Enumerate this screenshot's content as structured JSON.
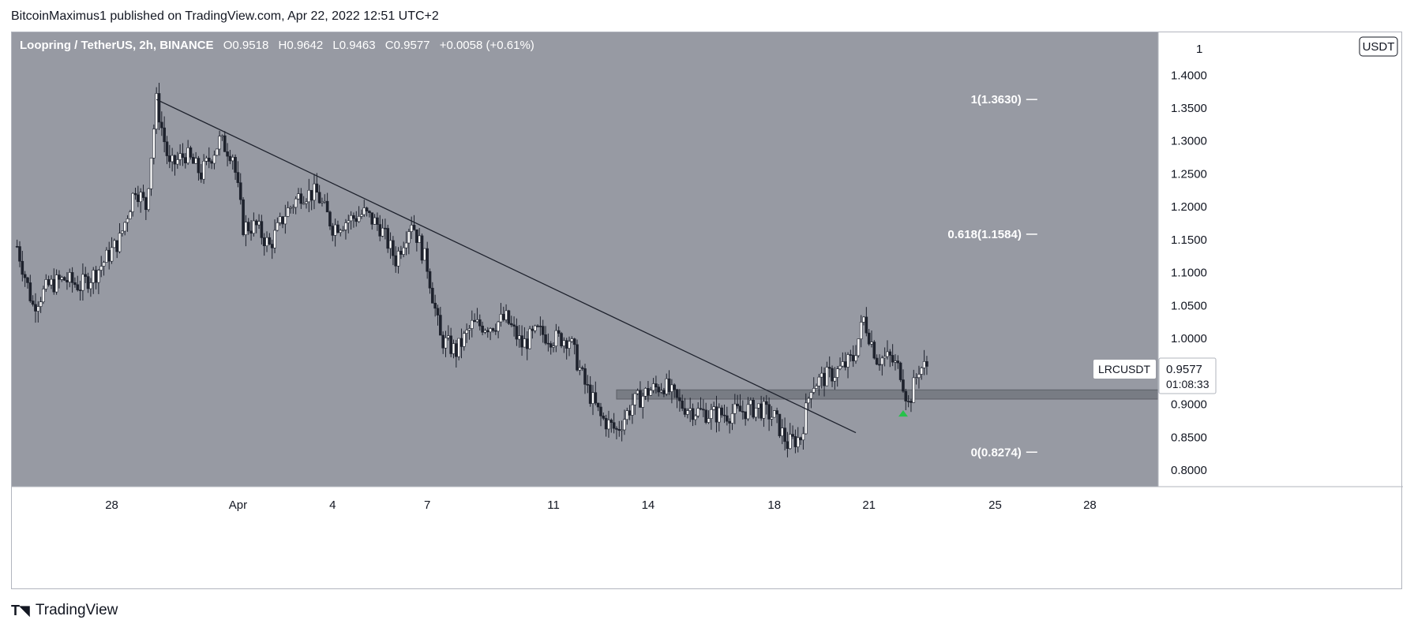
{
  "publisher_line": "BitcoinMaximus1 published on TradingView.com, Apr 22, 2022 12:51 UTC+2",
  "footer_brand": "TradingView",
  "header": {
    "symbol": "Loopring / TetherUS, 2h, BINANCE",
    "o_label": "O",
    "o_value": "0.9518",
    "h_label": "H",
    "h_value": "0.9642",
    "l_label": "L",
    "l_value": "0.9463",
    "c_label": "C",
    "c_value": "0.9577",
    "change": "+0.0058 (+0.61%)"
  },
  "currency_badge": "USDT",
  "price_tag": {
    "symbol": "LRCUSDT",
    "price": "0.9577",
    "countdown": "01:08:33"
  },
  "colors": {
    "pane_bg": "#979aa3",
    "axis_bg": "#ffffff",
    "candle": "#ffffff",
    "wick": "#1e222d",
    "trendline": "#1e222d",
    "zone": "#6e7179",
    "fib": "#ffffff",
    "arrow": "#26c24a"
  },
  "chart_data": {
    "type": "candlestick",
    "title": "",
    "y_axis": {
      "ticks": [
        "1.4000",
        "1.3500",
        "1.3000",
        "1.2500",
        "1.2000",
        "1.1500",
        "1.1000",
        "1.0500",
        "1.0000",
        "0.9500",
        "0.9000",
        "0.8500",
        "0.8000"
      ],
      "top_partial_tick": "1",
      "range": [
        0.775,
        1.465
      ]
    },
    "x_axis": {
      "ticks": [
        "28",
        "Apr",
        "4",
        "7",
        "11",
        "14",
        "18",
        "21",
        "25",
        "28"
      ]
    },
    "price_path": [
      [
        "2022-03-25T00:00",
        1.14
      ],
      [
        "2022-03-25T12:00",
        1.05
      ],
      [
        "2022-03-26T00:00",
        1.08
      ],
      [
        "2022-03-26T12:00",
        1.09
      ],
      [
        "2022-03-27T00:00",
        1.08
      ],
      [
        "2022-03-27T12:00",
        1.1
      ],
      [
        "2022-03-28T06:00",
        1.15
      ],
      [
        "2022-03-28T18:00",
        1.23
      ],
      [
        "2022-03-29T02:00",
        1.2
      ],
      [
        "2022-03-29T10:00",
        1.36
      ],
      [
        "2022-03-29T20:00",
        1.26
      ],
      [
        "2022-03-30T08:00",
        1.28
      ],
      [
        "2022-03-30T20:00",
        1.25
      ],
      [
        "2022-03-31T10:00",
        1.3
      ],
      [
        "2022-03-31T20:00",
        1.28
      ],
      [
        "2022-04-01T04:00",
        1.17
      ],
      [
        "2022-04-01T14:00",
        1.17
      ],
      [
        "2022-04-02T00:00",
        1.14
      ],
      [
        "2022-04-02T12:00",
        1.19
      ],
      [
        "2022-04-03T00:00",
        1.22
      ],
      [
        "2022-04-03T12:00",
        1.22
      ],
      [
        "2022-04-04T00:00",
        1.17
      ],
      [
        "2022-04-04T12:00",
        1.18
      ],
      [
        "2022-04-05T00:00",
        1.19
      ],
      [
        "2022-04-05T12:00",
        1.17
      ],
      [
        "2022-04-06T00:00",
        1.12
      ],
      [
        "2022-04-06T12:00",
        1.18
      ],
      [
        "2022-04-07T00:00",
        1.11
      ],
      [
        "2022-04-07T10:00",
        1.0
      ],
      [
        "2022-04-07T22:00",
        0.98
      ],
      [
        "2022-04-08T10:00",
        1.02
      ],
      [
        "2022-04-09T00:00",
        1.02
      ],
      [
        "2022-04-09T12:00",
        1.03
      ],
      [
        "2022-04-10T00:00",
        0.99
      ],
      [
        "2022-04-10T12:00",
        1.01
      ],
      [
        "2022-04-11T00:00",
        1.0
      ],
      [
        "2022-04-11T12:00",
        1.0
      ],
      [
        "2022-04-12T00:00",
        0.93
      ],
      [
        "2022-04-12T12:00",
        0.88
      ],
      [
        "2022-04-13T00:00",
        0.86
      ],
      [
        "2022-04-13T12:00",
        0.9
      ],
      [
        "2022-04-14T00:00",
        0.92
      ],
      [
        "2022-04-14T12:00",
        0.93
      ],
      [
        "2022-04-15T00:00",
        0.9
      ],
      [
        "2022-04-15T12:00",
        0.89
      ],
      [
        "2022-04-16T00:00",
        0.885
      ],
      [
        "2022-04-16T12:00",
        0.885
      ],
      [
        "2022-04-17T00:00",
        0.89
      ],
      [
        "2022-04-17T12:00",
        0.895
      ],
      [
        "2022-04-18T00:00",
        0.88
      ],
      [
        "2022-04-18T10:00",
        0.84
      ],
      [
        "2022-04-18T20:00",
        0.85
      ],
      [
        "2022-04-19T04:00",
        0.93
      ],
      [
        "2022-04-19T14:00",
        0.94
      ],
      [
        "2022-04-20T00:00",
        0.95
      ],
      [
        "2022-04-20T12:00",
        0.97
      ],
      [
        "2022-04-20T20:00",
        1.03
      ],
      [
        "2022-04-21T06:00",
        0.97
      ],
      [
        "2022-04-21T16:00",
        0.97
      ],
      [
        "2022-04-22T00:00",
        0.95
      ],
      [
        "2022-04-22T06:00",
        0.9
      ],
      [
        "2022-04-22T14:00",
        0.955
      ],
      [
        "2022-04-22T20:00",
        0.9577
      ]
    ],
    "last_price": 0.9577,
    "trendline": {
      "from": [
        "2022-03-29T10:00",
        1.363
      ],
      "to": [
        "2022-04-20T14:00",
        0.857
      ]
    },
    "support_zone": {
      "from": "2022-04-13T00:00",
      "y_range": [
        0.908,
        0.922
      ]
    },
    "fibonacci": [
      {
        "level": "1",
        "price": 1.363,
        "label": "1(1.3630)"
      },
      {
        "level": "0.618",
        "price": 1.1584,
        "label": "0.618(1.1584)"
      },
      {
        "level": "0",
        "price": 0.8274,
        "label": "0(0.8274)"
      }
    ],
    "fib_x": "2022-04-25T20:00",
    "marker": {
      "type": "up-arrow",
      "x": "2022-04-22T02:00",
      "y": 0.885
    }
  }
}
